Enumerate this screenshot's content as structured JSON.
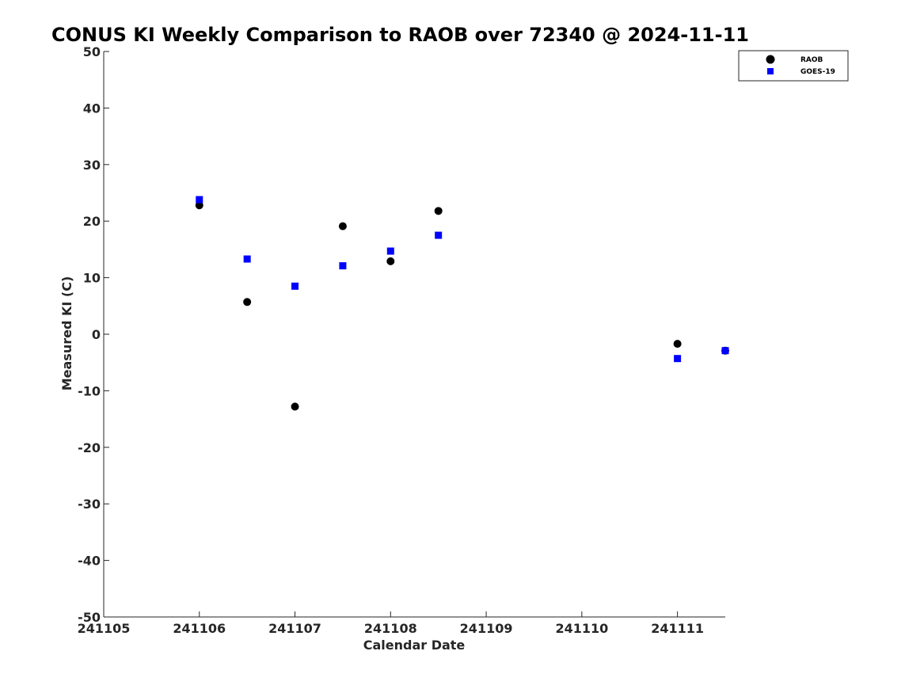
{
  "chart_data": {
    "type": "scatter",
    "title": "CONUS KI Weekly Comparison to RAOB over 72340 @ 2024-11-11",
    "xlabel": "Calendar Date",
    "ylabel": "Measured KI (C)",
    "xlim": [
      241105,
      241111.5
    ],
    "ylim": [
      -50,
      50
    ],
    "xticks": [
      241105,
      241106,
      241107,
      241108,
      241109,
      241110,
      241111
    ],
    "xtick_labels": [
      "241105",
      "241106",
      "241107",
      "241108",
      "241109",
      "241110",
      "241111"
    ],
    "yticks": [
      50,
      40,
      30,
      20,
      10,
      0,
      -10,
      -20,
      -30,
      -40,
      -50
    ],
    "ytick_labels": [
      "50",
      "40",
      "30",
      "20",
      "10",
      "0",
      "-10",
      "-20",
      "-30",
      "-40",
      "-50"
    ],
    "grid": false,
    "legend_position": "top-right",
    "series": [
      {
        "name": "RAOB",
        "marker": "circle",
        "color": "#000000",
        "points": [
          {
            "x": 241106.0,
            "y": 22.8
          },
          {
            "x": 241106.5,
            "y": 5.7
          },
          {
            "x": 241107.0,
            "y": -12.8
          },
          {
            "x": 241107.5,
            "y": 19.1
          },
          {
            "x": 241108.0,
            "y": 12.9
          },
          {
            "x": 241108.5,
            "y": 21.8
          },
          {
            "x": 241111.0,
            "y": -1.7
          },
          {
            "x": 241111.5,
            "y": -2.9
          }
        ]
      },
      {
        "name": "GOES-19",
        "marker": "square",
        "color": "#0000ff",
        "points": [
          {
            "x": 241106.0,
            "y": 23.8
          },
          {
            "x": 241106.5,
            "y": 13.3
          },
          {
            "x": 241107.0,
            "y": 8.5
          },
          {
            "x": 241107.5,
            "y": 12.1
          },
          {
            "x": 241108.0,
            "y": 14.7
          },
          {
            "x": 241108.5,
            "y": 17.5
          },
          {
            "x": 241111.0,
            "y": -4.3
          },
          {
            "x": 241111.5,
            "y": -2.9
          }
        ]
      }
    ]
  }
}
